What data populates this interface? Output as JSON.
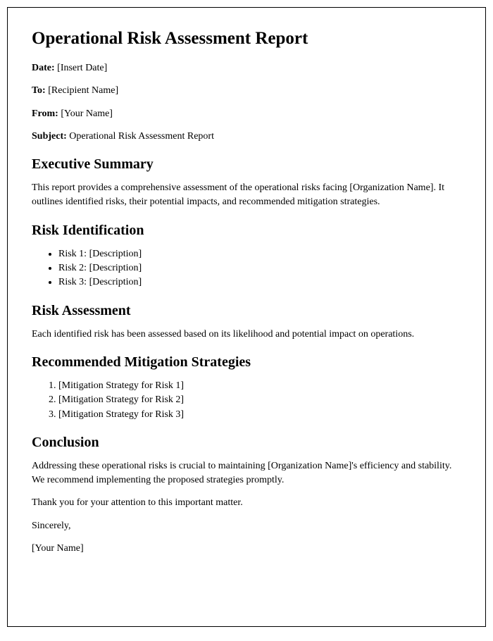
{
  "title": "Operational Risk Assessment Report",
  "meta": {
    "date_label": "Date:",
    "date_value": " [Insert Date]",
    "to_label": "To:",
    "to_value": " [Recipient Name]",
    "from_label": "From:",
    "from_value": " [Your Name]",
    "subject_label": "Subject:",
    "subject_value": " Operational Risk Assessment Report"
  },
  "sections": {
    "exec_summary": {
      "heading": "Executive Summary",
      "body": "This report provides a comprehensive assessment of the operational risks facing [Organization Name]. It outlines identified risks, their potential impacts, and recommended mitigation strategies."
    },
    "risk_identification": {
      "heading": "Risk Identification",
      "items": [
        "Risk 1: [Description]",
        "Risk 2: [Description]",
        "Risk 3: [Description]"
      ]
    },
    "risk_assessment": {
      "heading": "Risk Assessment",
      "body": "Each identified risk has been assessed based on its likelihood and potential impact on operations."
    },
    "mitigation": {
      "heading": "Recommended Mitigation Strategies",
      "items": [
        "[Mitigation Strategy for Risk 1]",
        "[Mitigation Strategy for Risk 2]",
        "[Mitigation Strategy for Risk 3]"
      ]
    },
    "conclusion": {
      "heading": "Conclusion",
      "body": "Addressing these operational risks is crucial to maintaining [Organization Name]'s efficiency and stability. We recommend implementing the proposed strategies promptly."
    }
  },
  "closing": {
    "thanks": "Thank you for your attention to this important matter.",
    "sincerely": "Sincerely,",
    "name": "[Your Name]"
  },
  "style": {
    "background_color": "#ffffff",
    "text_color": "#000000",
    "border_color": "#000000",
    "title_fontsize": 25,
    "heading_fontsize": 20,
    "body_fontsize": 14,
    "font_family": "Georgia, Times New Roman, serif"
  }
}
